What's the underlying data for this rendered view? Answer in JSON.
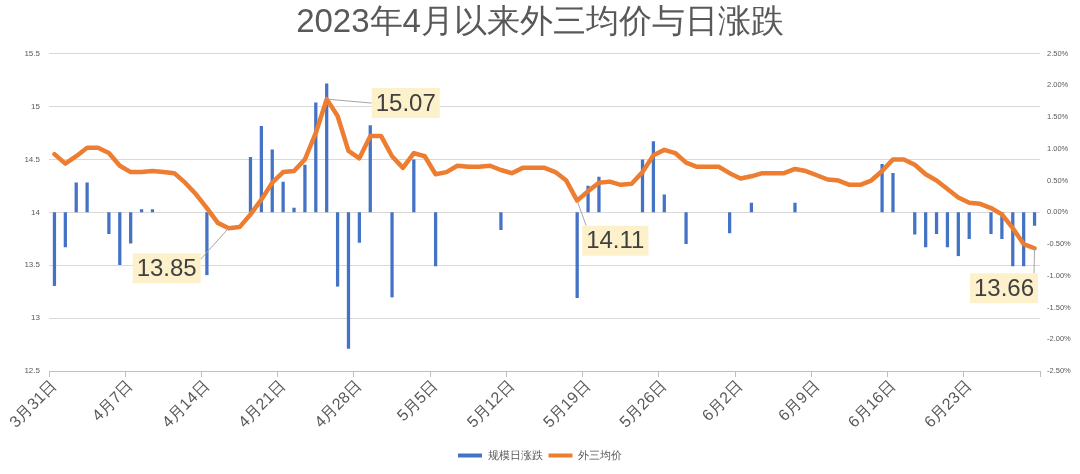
{
  "chart_data": {
    "type": "bar",
    "title": "2023年4月以来外三均价与日涨跌",
    "categories": [
      "3月31日",
      null,
      null,
      null,
      null,
      null,
      null,
      "4月7日",
      null,
      null,
      null,
      null,
      null,
      null,
      "4月14日",
      null,
      null,
      null,
      null,
      null,
      null,
      "4月21日",
      null,
      null,
      null,
      null,
      null,
      null,
      "4月28日",
      null,
      null,
      null,
      null,
      null,
      null,
      "5月5日",
      null,
      null,
      null,
      null,
      null,
      null,
      "5月12日",
      null,
      null,
      null,
      null,
      null,
      null,
      "5月19日",
      null,
      null,
      null,
      null,
      null,
      null,
      "5月26日",
      null,
      null,
      null,
      null,
      null,
      null,
      "6月2日",
      null,
      null,
      null,
      null,
      null,
      null,
      "6月9日",
      null,
      null,
      null,
      null,
      null,
      null,
      "6月16日",
      null,
      null,
      null,
      null,
      null,
      null,
      "6月23日",
      null,
      null,
      null,
      null,
      null,
      null
    ],
    "series": [
      {
        "name": "规模日涨跌",
        "type": "bar",
        "axis": "y2",
        "color": "#4472c4",
        "values": [
          -1.16,
          -0.55,
          0.47,
          0.47,
          null,
          -0.34,
          -0.83,
          -0.49,
          0.05,
          0.05,
          null,
          null,
          null,
          null,
          -0.99,
          null,
          null,
          null,
          0.87,
          1.36,
          0.99,
          0.48,
          0.07,
          0.75,
          1.73,
          2.03,
          -1.17,
          -2.15,
          -0.48,
          1.37,
          null,
          -1.34,
          null,
          0.83,
          null,
          -0.85,
          null,
          null,
          null,
          null,
          null,
          -0.28,
          null,
          null,
          null,
          null,
          null,
          null,
          -1.35,
          0.42,
          0.56,
          null,
          null,
          null,
          0.83,
          1.12,
          0.28,
          null,
          -0.5,
          null,
          null,
          null,
          -0.33,
          null,
          0.15,
          null,
          null,
          null,
          0.15,
          null,
          null,
          null,
          null,
          null,
          null,
          null,
          0.76,
          0.62,
          null,
          -0.35,
          -0.55,
          -0.34,
          -0.55,
          -0.69,
          -0.42,
          null,
          -0.34,
          -0.42,
          -0.85,
          -0.85,
          -0.21
        ]
      },
      {
        "name": "外三均价",
        "type": "line",
        "color": "#ed7d31",
        "values": [
          14.55,
          14.46,
          14.53,
          14.61,
          14.61,
          14.56,
          14.44,
          14.38,
          14.38,
          14.39,
          14.38,
          14.37,
          14.28,
          14.17,
          14.04,
          13.9,
          13.85,
          13.86,
          13.98,
          14.12,
          14.28,
          14.38,
          14.39,
          14.5,
          14.75,
          15.07,
          14.91,
          14.58,
          14.51,
          14.72,
          14.72,
          14.53,
          14.42,
          14.56,
          14.53,
          14.36,
          14.38,
          14.44,
          14.43,
          14.43,
          14.44,
          14.4,
          14.37,
          14.42,
          14.42,
          14.42,
          14.38,
          14.3,
          14.11,
          14.2,
          14.28,
          14.29,
          14.26,
          14.27,
          14.38,
          14.54,
          14.59,
          14.56,
          14.47,
          14.43,
          14.43,
          14.43,
          14.37,
          14.32,
          14.34,
          14.37,
          14.37,
          14.37,
          14.41,
          14.39,
          14.35,
          14.31,
          14.3,
          14.26,
          14.26,
          14.3,
          14.39,
          14.5,
          14.5,
          14.45,
          14.36,
          14.3,
          14.22,
          14.14,
          14.09,
          14.08,
          14.04,
          13.98,
          13.85,
          13.7,
          13.66
        ],
        "value_labels": [
          null,
          null,
          null,
          null,
          null,
          null,
          null,
          null,
          null,
          null,
          null,
          null,
          null,
          null,
          null,
          null,
          "13.85",
          null,
          null,
          null,
          null,
          null,
          null,
          null,
          null,
          "15.07",
          null,
          null,
          null,
          null,
          null,
          null,
          null,
          null,
          null,
          null,
          null,
          null,
          null,
          null,
          null,
          null,
          null,
          null,
          null,
          null,
          null,
          null,
          "14.11",
          null,
          null,
          null,
          null,
          null,
          null,
          null,
          null,
          null,
          null,
          null,
          null,
          null,
          null,
          null,
          null,
          null,
          null,
          null,
          null,
          null,
          null,
          null,
          null,
          null,
          null,
          null,
          null,
          null,
          null,
          null,
          null,
          null,
          null,
          null,
          null,
          null,
          null,
          null,
          null,
          null,
          "13.66"
        ]
      }
    ],
    "ylim": [
      12.5,
      15.5
    ],
    "yticks": [
      12.5,
      13,
      13.5,
      14,
      14.5,
      15,
      15.5
    ],
    "y2lim": [
      -2.5,
      2.5
    ],
    "y2ticks": [
      {
        "value": -2.5,
        "label": "-2.50%"
      },
      {
        "value": -2,
        "label": "-2.00%"
      },
      {
        "value": -1.5,
        "label": "-1.50%"
      },
      {
        "value": -1,
        "label": "-1.00%"
      },
      {
        "value": -0.5,
        "label": "-0.50%"
      },
      {
        "value": 0,
        "label": "0.00%"
      },
      {
        "value": 0.5,
        "label": "0.50%"
      },
      {
        "value": 1,
        "label": "1.00%"
      },
      {
        "value": 1.5,
        "label": "1.50%"
      },
      {
        "value": 2,
        "label": "2.00%"
      },
      {
        "value": 2.5,
        "label": "2.50%"
      }
    ],
    "grid": "y",
    "legend": "bottom"
  }
}
